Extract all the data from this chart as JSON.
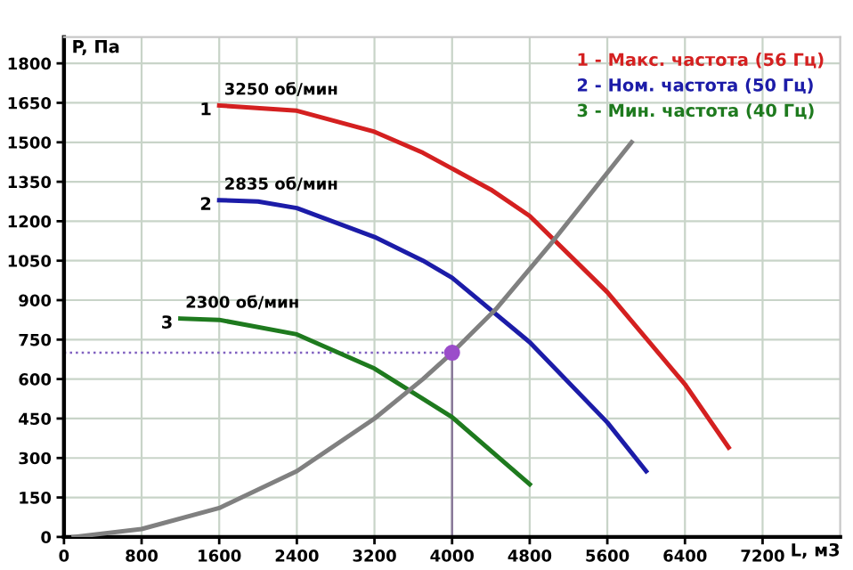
{
  "chart_data": {
    "type": "line",
    "xlabel": "L, м3",
    "ylabel": "P, Па",
    "xlim": [
      0,
      8000
    ],
    "ylim": [
      0,
      1900
    ],
    "xticks": [
      0,
      800,
      1600,
      2400,
      3200,
      4000,
      4800,
      5600,
      6400,
      7200
    ],
    "yticks": [
      0,
      150,
      300,
      450,
      600,
      750,
      900,
      1050,
      1200,
      1350,
      1500,
      1650,
      1800
    ],
    "grid": true,
    "legend": "top right",
    "line_style": "solid",
    "marker": "none",
    "series": [
      {
        "name": "1 - Макс. частота (56 Гц)",
        "color": "#d42020",
        "x": [
          1600,
          2400,
          3200,
          3700,
          4400,
          4800,
          5600,
          6400,
          6850
        ],
        "values": [
          1640,
          1620,
          1540,
          1460,
          1320,
          1220,
          930,
          580,
          340
        ]
      },
      {
        "name": "2 - Ном. частота (50 Гц)",
        "color": "#1c1ca8",
        "x": [
          1600,
          2000,
          2400,
          3200,
          3700,
          4000,
          4800,
          5600,
          6000
        ],
        "values": [
          1280,
          1275,
          1250,
          1140,
          1050,
          985,
          740,
          435,
          250
        ]
      },
      {
        "name": "3 - Мин. частота (40 Гц)",
        "color": "#1e7a1e",
        "x": [
          1200,
          1600,
          2400,
          3200,
          3700,
          4000,
          4800
        ],
        "values": [
          830,
          825,
          770,
          640,
          525,
          455,
          200
        ]
      },
      {
        "color": "#808080",
        "x": [
          100,
          800,
          1600,
          2400,
          3200,
          3700,
          4000,
          4450,
          5030,
          5850
        ],
        "values": [
          0,
          30,
          110,
          250,
          450,
          600,
          700,
          865,
          1120,
          1500
        ]
      },
      {
        "type": "scatter",
        "marker": "circle",
        "color": "#9b4dca",
        "x": [
          4000
        ],
        "values": [
          700
        ]
      }
    ],
    "ref_lines": [
      {
        "axis": "y",
        "value": 700,
        "color": "#8060c0",
        "line_style": "dotted"
      },
      {
        "axis": "x",
        "value": 4000,
        "color": "#8a7a9a",
        "line_style": "solid"
      }
    ],
    "annotations": [
      "1",
      "3250 об/мин",
      "2",
      "2835 об/мин",
      "3",
      "2300 об/мин"
    ]
  }
}
